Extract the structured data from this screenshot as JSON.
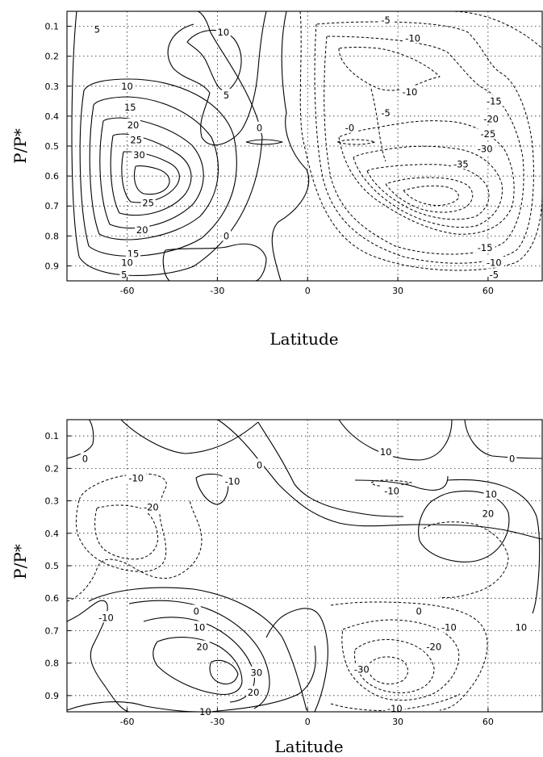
{
  "chart_data": [
    {
      "type": "contour",
      "xlabel": "Latitude",
      "ylabel": "P/P*",
      "x_ticks": [
        -60,
        -30,
        0,
        30,
        60
      ],
      "y_ticks": [
        0.1,
        0.2,
        0.3,
        0.4,
        0.5,
        0.6,
        0.7,
        0.8,
        0.9
      ],
      "xlim": [
        -80,
        78
      ],
      "ylim": [
        0.05,
        0.95
      ],
      "y_inverted": true,
      "grid": true,
      "negative_contours_dashed": true,
      "contour_labels": [
        {
          "text": "5",
          "lat": -70,
          "p": 0.11
        },
        {
          "text": "10",
          "lat": -28,
          "p": 0.12
        },
        {
          "text": "5",
          "lat": -27,
          "p": 0.33
        },
        {
          "text": "10",
          "lat": -60,
          "p": 0.3
        },
        {
          "text": "15",
          "lat": -59,
          "p": 0.37
        },
        {
          "text": "20",
          "lat": -58,
          "p": 0.43
        },
        {
          "text": "25",
          "lat": -57,
          "p": 0.48
        },
        {
          "text": "30",
          "lat": -56,
          "p": 0.53
        },
        {
          "text": "25",
          "lat": -53,
          "p": 0.69
        },
        {
          "text": "20",
          "lat": -55,
          "p": 0.78
        },
        {
          "text": "15",
          "lat": -58,
          "p": 0.86
        },
        {
          "text": "10",
          "lat": -60,
          "p": 0.89
        },
        {
          "text": "5",
          "lat": -61,
          "p": 0.93
        },
        {
          "text": "0",
          "lat": -27,
          "p": 0.8
        },
        {
          "text": "0",
          "lat": -16,
          "p": 0.44
        },
        {
          "text": "-0",
          "lat": 14,
          "p": 0.44
        },
        {
          "text": "-5",
          "lat": 26,
          "p": 0.08
        },
        {
          "text": "-10",
          "lat": 35,
          "p": 0.14
        },
        {
          "text": "-10",
          "lat": 34,
          "p": 0.32
        },
        {
          "text": "-5",
          "lat": 26,
          "p": 0.39
        },
        {
          "text": "-15",
          "lat": 62,
          "p": 0.35
        },
        {
          "text": "-20",
          "lat": 61,
          "p": 0.41
        },
        {
          "text": "-25",
          "lat": 60,
          "p": 0.46
        },
        {
          "text": "-30",
          "lat": 59,
          "p": 0.51
        },
        {
          "text": "-35",
          "lat": 51,
          "p": 0.56
        },
        {
          "text": "-15",
          "lat": 59,
          "p": 0.84
        },
        {
          "text": "-10",
          "lat": 62,
          "p": 0.89
        },
        {
          "text": "-5",
          "lat": 62,
          "p": 0.93
        }
      ]
    },
    {
      "type": "contour",
      "xlabel": "Latitude",
      "ylabel": "P/P*",
      "x_ticks": [
        -60,
        -30,
        0,
        30,
        60
      ],
      "y_ticks": [
        0.1,
        0.2,
        0.3,
        0.4,
        0.5,
        0.6,
        0.7,
        0.8,
        0.9
      ],
      "xlim": [
        -80,
        78
      ],
      "ylim": [
        0.05,
        0.95
      ],
      "y_inverted": true,
      "grid": true,
      "negative_contours_dashed": true,
      "contour_labels": [
        {
          "text": "0",
          "lat": -74,
          "p": 0.17
        },
        {
          "text": "-10",
          "lat": -57,
          "p": 0.23
        },
        {
          "text": "-20",
          "lat": -52,
          "p": 0.32
        },
        {
          "text": "-10",
          "lat": -25,
          "p": 0.24
        },
        {
          "text": "0",
          "lat": -16,
          "p": 0.19
        },
        {
          "text": "10",
          "lat": 26,
          "p": 0.15
        },
        {
          "text": "-10",
          "lat": 28,
          "p": 0.27
        },
        {
          "text": "0",
          "lat": 68,
          "p": 0.17
        },
        {
          "text": "10",
          "lat": 61,
          "p": 0.28
        },
        {
          "text": "20",
          "lat": 60,
          "p": 0.34
        },
        {
          "text": "-10",
          "lat": -67,
          "p": 0.66
        },
        {
          "text": "0",
          "lat": -37,
          "p": 0.64
        },
        {
          "text": "10",
          "lat": -36,
          "p": 0.69
        },
        {
          "text": "20",
          "lat": -35,
          "p": 0.75
        },
        {
          "text": "30",
          "lat": -17,
          "p": 0.83
        },
        {
          "text": "20",
          "lat": -18,
          "p": 0.89
        },
        {
          "text": "10",
          "lat": -34,
          "p": 0.95
        },
        {
          "text": "0",
          "lat": 37,
          "p": 0.64
        },
        {
          "text": "-10",
          "lat": 47,
          "p": 0.69
        },
        {
          "text": "-20",
          "lat": 42,
          "p": 0.75
        },
        {
          "text": "-30",
          "lat": 18,
          "p": 0.82
        },
        {
          "text": "-10",
          "lat": 29,
          "p": 0.94
        },
        {
          "text": "10",
          "lat": 71,
          "p": 0.69
        }
      ]
    }
  ]
}
